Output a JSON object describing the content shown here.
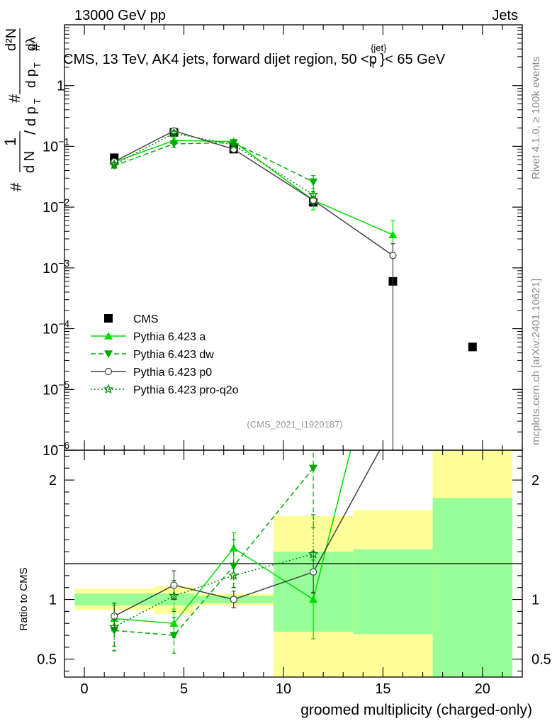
{
  "header": {
    "energy_label": "13000 GeV pp",
    "category_label": "Jets"
  },
  "side_text": {
    "rivet": "Rivet 4.1.0, ≥ 100k events",
    "site": "mcplots.cern.ch [arXiv:2401.10621]"
  },
  "colors": {
    "cms": "#000000",
    "pythia_a": "#00dd00",
    "pythia_dw": "#00aa00",
    "pythia_p0": "#404040",
    "pythia_proq2o": "#008800",
    "band_yellow": "#ffff99",
    "band_green": "#99ff99"
  },
  "chart_data": [
    {
      "type": "scatter",
      "title": "CMS, 13 TeV, AK4 jets, forward dijet region, 50 <p_T^{jet}< 65 GeV",
      "ylabel": "(1/N) dN/dλ  [ # / (d p_T) ... ]",
      "yscale": "log",
      "ylim": [
        1e-06,
        10
      ],
      "xlim": [
        -1,
        22
      ],
      "analysis_id": "(CMS_2021_I1920187)",
      "y_ticks": [
        {
          "value": 1e-06,
          "label": "10",
          "exp": "−6"
        },
        {
          "value": 1e-05,
          "label": "10",
          "exp": "−5"
        },
        {
          "value": 0.0001,
          "label": "10",
          "exp": "−4"
        },
        {
          "value": 0.001,
          "label": "10",
          "exp": "−3"
        },
        {
          "value": 0.01,
          "label": "10",
          "exp": "−2"
        },
        {
          "value": 0.1,
          "label": "10",
          "exp": "−1"
        },
        {
          "value": 1,
          "label": "1",
          "exp": ""
        }
      ],
      "ylabel_parts": {
        "hash1": "#",
        "one": "1",
        "dN": "d N",
        "slash": "/",
        "dpT": "d p",
        "sub_T": "T",
        "hash2": "#",
        "d2N": "d²N",
        "hash3": "#",
        "dpTdl": "d p",
        "sub_T2": "T",
        "dlambda": "dλ"
      },
      "series": [
        {
          "name": "CMS",
          "style": "cms",
          "x": [
            1.5,
            4.5,
            7.5,
            11.5,
            15.5,
            19.5
          ],
          "y": [
            0.065,
            0.17,
            0.09,
            0.012,
            0.0006,
            5e-05
          ]
        },
        {
          "name": "Pythia 6.423 a",
          "style": "a",
          "x": [
            1.5,
            4.5,
            7.5,
            11.5,
            15.5
          ],
          "y": [
            0.055,
            0.125,
            0.12,
            0.013,
            0.0035
          ],
          "err_low": [
            0.05,
            0.11,
            0.11,
            0.009,
            0.0018
          ],
          "err_high": [
            0.06,
            0.14,
            0.13,
            0.017,
            0.006
          ]
        },
        {
          "name": "Pythia 6.423 dw",
          "style": "dw",
          "x": [
            1.5,
            4.5,
            7.5,
            11.5
          ],
          "y": [
            0.048,
            0.11,
            0.115,
            0.026
          ],
          "err_low": [
            0.044,
            0.095,
            0.105,
            0.02
          ],
          "err_high": [
            0.052,
            0.125,
            0.128,
            0.033
          ]
        },
        {
          "name": "Pythia 6.423 p0",
          "style": "p0",
          "x": [
            1.5,
            4.5,
            7.5,
            11.5,
            15.5
          ],
          "y": [
            0.056,
            0.18,
            0.09,
            0.013,
            0.0016
          ],
          "err_low": [
            0.052,
            0.165,
            0.085,
            0.011,
            1e-06
          ],
          "err_high": [
            0.06,
            0.195,
            0.095,
            0.015,
            0.0025
          ]
        },
        {
          "name": "Pythia 6.423 pro-q2o",
          "style": "proq2o",
          "x": [
            1.5,
            4.5,
            7.5,
            11.5
          ],
          "y": [
            0.05,
            0.165,
            0.105,
            0.016
          ],
          "err_low": [
            0.045,
            0.15,
            0.1,
            0.014
          ],
          "err_high": [
            0.055,
            0.18,
            0.11,
            0.018
          ]
        }
      ]
    },
    {
      "type": "scatter",
      "ylabel": "Ratio to CMS",
      "xlabel": "groomed multiplicity (charged-only)",
      "ylim": [
        0.35,
        2.25
      ],
      "xlim": [
        -1,
        22
      ],
      "x_ticks": [
        0,
        5,
        10,
        15,
        20
      ],
      "y_ticks": [
        0.5,
        1,
        2
      ],
      "bands": [
        {
          "x0": -0.5,
          "x1": 3.5,
          "yellow": [
            0.91,
            1.09
          ],
          "green": [
            0.95,
            1.05
          ]
        },
        {
          "x0": 3.5,
          "x1": 5.5,
          "yellow": [
            0.88,
            1.11
          ],
          "green": [
            0.95,
            1.05
          ]
        },
        {
          "x0": 5.5,
          "x1": 9.5,
          "yellow": [
            0.95,
            1.05
          ],
          "green": [
            0.97,
            1.03
          ]
        },
        {
          "x0": 9.5,
          "x1": 13.5,
          "yellow": [
            0.0,
            1.7
          ],
          "green": [
            0.73,
            1.4
          ]
        },
        {
          "x0": 13.5,
          "x1": 17.5,
          "yellow": [
            0.0,
            1.75
          ],
          "green": [
            0.71,
            1.42
          ]
        },
        {
          "x0": 17.5,
          "x1": 21.5,
          "yellow": [
            0.0,
            2.6
          ],
          "green": [
            0.0,
            1.85
          ]
        }
      ],
      "series": [
        {
          "name": "Pythia 6.423 a",
          "style": "a",
          "x": [
            1.5,
            4.5,
            7.5,
            11.5,
            13.45
          ],
          "y": [
            0.84,
            0.8,
            1.43,
            1.0,
            2.3
          ],
          "err_low": [
            0.73,
            0.68,
            1.3,
            0.67,
            null
          ],
          "err_high": [
            0.95,
            0.92,
            1.56,
            1.33,
            null
          ]
        },
        {
          "name": "Pythia 6.423 dw",
          "style": "dw",
          "x": [
            1.5,
            4.5,
            7.5,
            11.5
          ],
          "y": [
            0.74,
            0.7,
            1.28,
            2.1
          ],
          "err_low": [
            0.61,
            0.55,
            1.1,
            1.6
          ],
          "err_high": [
            0.87,
            0.85,
            1.5,
            2.3
          ]
        },
        {
          "name": "Pythia 6.423 p0",
          "style": "p0",
          "x": [
            1.5,
            4.5,
            7.5,
            11.5,
            15.0
          ],
          "y": [
            0.86,
            1.12,
            1.0,
            1.23,
            2.3
          ],
          "err_low": [
            0.76,
            1.0,
            0.93,
            1.06,
            null
          ],
          "err_high": [
            0.97,
            1.24,
            1.07,
            1.4,
            null
          ]
        },
        {
          "name": "Pythia 6.423 pro-q2o",
          "style": "proq2o",
          "x": [
            1.5,
            4.5,
            7.5,
            11.5
          ],
          "y": [
            0.77,
            1.03,
            1.2,
            1.38
          ],
          "err_low": [
            0.57,
            0.9,
            1.1,
            1.05
          ],
          "err_high": [
            0.97,
            1.16,
            1.3,
            1.71
          ]
        }
      ]
    }
  ]
}
